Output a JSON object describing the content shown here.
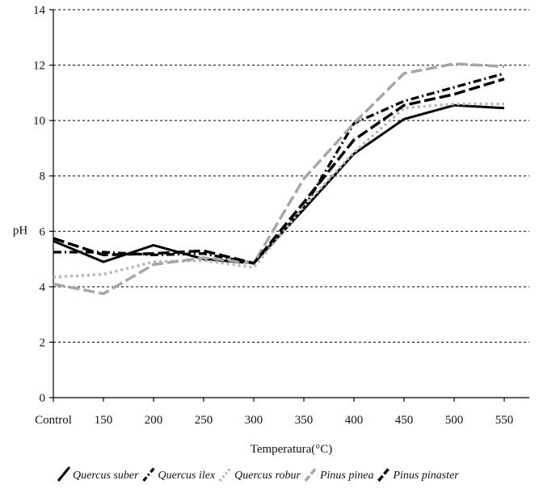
{
  "chart_data": {
    "type": "line",
    "title": "",
    "xlabel": "Temperatura(°C)",
    "ylabel": "pH",
    "categories": [
      "Control",
      "150",
      "200",
      "250",
      "300",
      "350",
      "400",
      "450",
      "500",
      "550"
    ],
    "ylim": [
      0,
      14
    ],
    "yticks": [
      0,
      2,
      4,
      6,
      8,
      10,
      12,
      14
    ],
    "grid": "horizontal dashed",
    "legend_position": "bottom",
    "series": [
      {
        "name": "Quercus  suber",
        "color": "#000000",
        "dash": "solid",
        "values": [
          5.65,
          4.9,
          5.5,
          5.0,
          4.85,
          6.8,
          8.8,
          10.05,
          10.55,
          10.45
        ]
      },
      {
        "name": "Quercus  ilex",
        "color": "#000000",
        "dash": "dash-dot",
        "values": [
          5.25,
          5.25,
          5.15,
          5.2,
          4.85,
          6.85,
          9.9,
          10.7,
          11.2,
          11.7
        ]
      },
      {
        "name": "Quercus  robur",
        "color": "#b5b5b5",
        "dash": "dotted",
        "values": [
          4.35,
          4.45,
          4.9,
          4.95,
          4.7,
          6.9,
          8.85,
          10.45,
          10.6,
          10.6
        ]
      },
      {
        "name": "Pinus pinea",
        "color": "#a6a6a6",
        "dash": "long-dash",
        "values": [
          4.1,
          3.75,
          4.8,
          5.05,
          4.85,
          7.9,
          9.9,
          11.7,
          12.05,
          11.95
        ]
      },
      {
        "name": "Pinus pinaster",
        "color": "#000000",
        "dash": "long-dash",
        "values": [
          5.75,
          5.15,
          5.2,
          5.3,
          4.85,
          7.05,
          9.3,
          10.55,
          10.95,
          11.5
        ]
      }
    ]
  }
}
